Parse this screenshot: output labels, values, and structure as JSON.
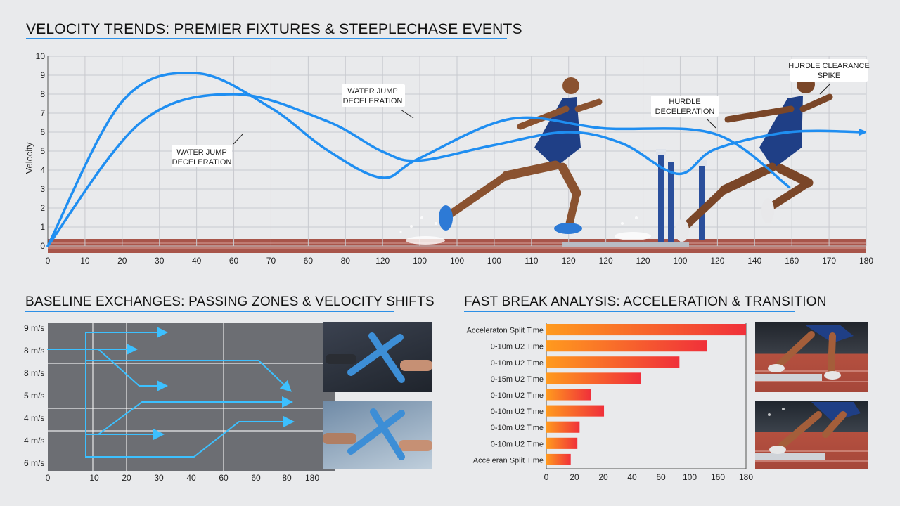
{
  "top_chart": {
    "title": "Velocity Trends: Premier Fixtures & Steeplechase Events",
    "ylabel": "Velocity",
    "y_ticks": [
      "0",
      "1",
      "2",
      "3",
      "4",
      "5",
      "6",
      "7",
      "8",
      "9",
      "10"
    ],
    "x_ticks": [
      "0",
      "10",
      "20",
      "30",
      "40",
      "60",
      "70",
      "60",
      "80",
      "120",
      "100",
      "100",
      "100",
      "110",
      "120",
      "120",
      "120",
      "100",
      "120",
      "140",
      "160",
      "170",
      "180"
    ],
    "annotations": [
      {
        "text_lines": [
          "WATER JUMP",
          "DECELERATION"
        ]
      },
      {
        "text_lines": [
          "WATER JUMP",
          "DECELERATION"
        ]
      },
      {
        "text_lines": [
          "HURDLE",
          "DECELERATION"
        ]
      },
      {
        "text_lines": [
          "HURDLE CLEARANCE",
          "SPIKE"
        ]
      }
    ],
    "colors": {
      "line": "#1f8ef1",
      "grid": "#c8cacf"
    }
  },
  "chart_data": [
    {
      "type": "line",
      "title": "Velocity Trends: Premier Fixtures & Steeplechase Events",
      "xlabel": "",
      "ylabel": "Velocity",
      "ylim": [
        0,
        10
      ],
      "grid": true,
      "series": [
        {
          "x": [
            0,
            4,
            8,
            12,
            15,
            18,
            20,
            25,
            30,
            36,
            40
          ],
          "y": [
            0,
            7.6,
            9.1,
            7.3,
            5.1,
            3.6,
            4.6,
            6.7,
            6.2,
            5.9,
            3.1
          ]
        },
        {
          "x": [
            0,
            5,
            10,
            15,
            18,
            20,
            24,
            28,
            31,
            34,
            36,
            40,
            44
          ],
          "y": [
            0,
            6.5,
            8.0,
            6.6,
            5.0,
            4.5,
            5.3,
            6.0,
            5.4,
            3.8,
            5.1,
            6.0,
            6.0
          ]
        }
      ]
    },
    {
      "type": "line",
      "title": "Baseline Exchanges: Passing Zones & Velocity Shifts",
      "y_tick_labels": [
        "9 m/s",
        "8 m/s",
        "8 m/s",
        "5 m/s",
        "4 m/s",
        "4 m/s",
        "6 m/s"
      ],
      "x_tick_labels": [
        "0",
        "10",
        "20",
        "30",
        "40",
        "60",
        "60",
        "80",
        "180"
      ],
      "grid": true
    },
    {
      "type": "bar",
      "orientation": "horizontal",
      "title": "Fast Break Analysis: Acceleration & Transition",
      "categories": [
        "Acceleraton Split Time",
        "0-10m U2 Time",
        "0-10m U2 Time",
        "0-15m U2 Time",
        "0-10m U2 Time",
        "0-10m U2 Time",
        "0-10m U2 Time",
        "0-10m U2 Time",
        "Acceleran Split Time"
      ],
      "values": [
        180,
        145,
        120,
        85,
        40,
        52,
        30,
        28,
        22
      ],
      "x_tick_labels": [
        "0",
        "20",
        "20",
        "40",
        "60",
        "100",
        "160",
        "180"
      ],
      "xlim": [
        0,
        180
      ]
    }
  ],
  "bottom_left": {
    "title": "Baseline Exchanges: Passing Zones & Velocity Shifts",
    "y_ticks": [
      "9 m/s",
      "8 m/s",
      "8 m/s",
      "5 m/s",
      "4 m/s",
      "4 m/s",
      "6 m/s"
    ],
    "x_ticks": [
      "0",
      "10",
      "20",
      "30",
      "40",
      "60",
      "60",
      "80",
      "180"
    ],
    "colors": {
      "panel": "#6c6e73",
      "arrow": "#35b6ff"
    }
  },
  "bottom_right": {
    "title": "Fast Break Analysis: Acceleration & Transition",
    "categories": [
      "Acceleraton Split Time",
      "0-10m U2 Time",
      "0-10m U2 Time",
      "0-15m U2 Time",
      "0-10m U2 Time",
      "0-10m U2 Time",
      "0-10m U2 Time",
      "0-10m U2 Time",
      "Acceleran Split Time"
    ],
    "x_ticks": [
      "0",
      "20",
      "20",
      "40",
      "60",
      "100",
      "160",
      "180"
    ],
    "colors": {
      "bar_start": "#ff9a1e",
      "bar_end": "#f0303a"
    }
  }
}
